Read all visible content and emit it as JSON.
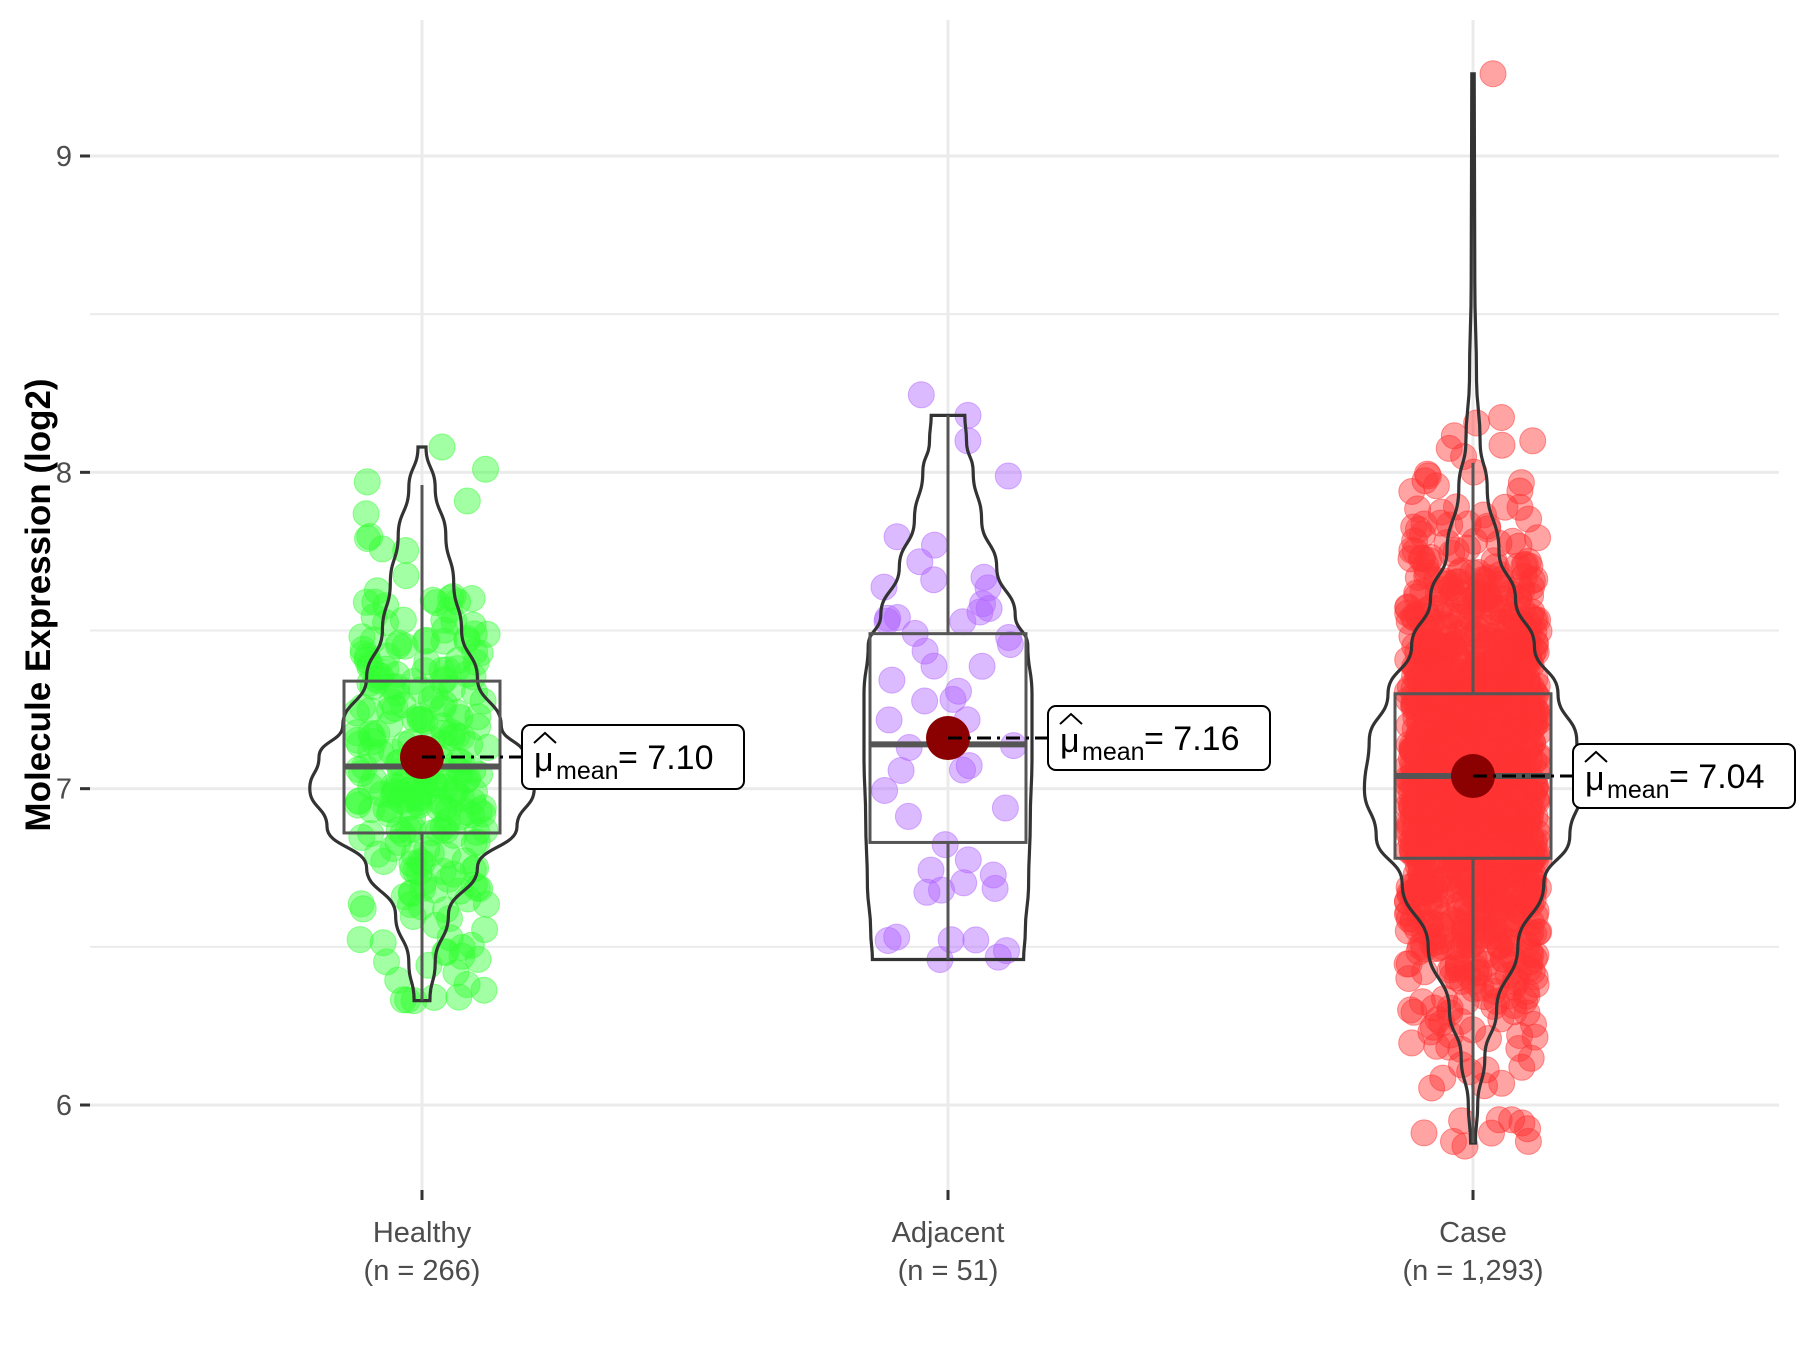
{
  "chart_data": {
    "type": "violin",
    "title": "",
    "xlabel": "",
    "ylabel": "Molecule Expression (log2)",
    "ylim": [
      5.7,
      9.43
    ],
    "y_ticks": [
      6,
      7,
      8,
      9
    ],
    "y_tick_labels": [
      "6",
      "7",
      "8",
      "9"
    ],
    "grid": true,
    "categories": [
      "Healthy",
      "Adjacent",
      "Case"
    ],
    "category_counts": [
      "(n = 266)",
      "(n = 51)",
      "(n = 1,293)"
    ],
    "mean_label_symbol": "μ",
    "mean_label_sub": "mean",
    "series": [
      {
        "name": "Healthy",
        "n": 266,
        "color": "#33ff33",
        "mean": 7.1,
        "mean_label": "= 7.10",
        "median": 7.07,
        "q1": 6.86,
        "q3": 7.34,
        "whisker_low": 6.33,
        "whisker_high": 7.96,
        "min": 6.33,
        "max": 8.08,
        "violin_profile": [
          [
            6.33,
            0.06
          ],
          [
            6.45,
            0.1
          ],
          [
            6.6,
            0.2
          ],
          [
            6.75,
            0.42
          ],
          [
            6.88,
            0.72
          ],
          [
            7.0,
            0.85
          ],
          [
            7.1,
            0.78
          ],
          [
            7.2,
            0.6
          ],
          [
            7.35,
            0.42
          ],
          [
            7.5,
            0.3
          ],
          [
            7.65,
            0.24
          ],
          [
            7.8,
            0.18
          ],
          [
            7.95,
            0.1
          ],
          [
            8.08,
            0.03
          ]
        ]
      },
      {
        "name": "Adjacent",
        "n": 51,
        "color": "#b266ff",
        "mean": 7.16,
        "mean_label": "= 7.16",
        "median": 7.14,
        "q1": 6.83,
        "q3": 7.49,
        "whisker_low": 6.46,
        "whisker_high": 8.18,
        "min": 6.46,
        "max": 8.18,
        "violin_profile": [
          [
            6.46,
            0.9
          ],
          [
            6.55,
            0.92
          ],
          [
            6.7,
            0.96
          ],
          [
            6.9,
            0.98
          ],
          [
            7.1,
            1.0
          ],
          [
            7.3,
            1.0
          ],
          [
            7.45,
            0.95
          ],
          [
            7.55,
            0.8
          ],
          [
            7.7,
            0.58
          ],
          [
            7.85,
            0.4
          ],
          [
            8.0,
            0.3
          ],
          [
            8.1,
            0.22
          ],
          [
            8.18,
            0.2
          ]
        ]
      },
      {
        "name": "Case",
        "n": 1293,
        "color": "#ff3333",
        "mean": 7.04,
        "mean_label": "= 7.04",
        "median": 7.04,
        "q1": 6.78,
        "q3": 7.3,
        "whisker_low": 5.88,
        "whisker_high": 8.03,
        "min": 5.87,
        "max": 9.26,
        "violin_profile": [
          [
            5.88,
            0.02
          ],
          [
            6.0,
            0.04
          ],
          [
            6.15,
            0.1
          ],
          [
            6.3,
            0.2
          ],
          [
            6.5,
            0.38
          ],
          [
            6.7,
            0.6
          ],
          [
            6.85,
            0.82
          ],
          [
            7.0,
            0.92
          ],
          [
            7.15,
            0.88
          ],
          [
            7.3,
            0.72
          ],
          [
            7.45,
            0.52
          ],
          [
            7.6,
            0.36
          ],
          [
            7.75,
            0.22
          ],
          [
            7.95,
            0.12
          ],
          [
            8.1,
            0.06
          ],
          [
            8.3,
            0.03
          ],
          [
            8.6,
            0.015
          ],
          [
            9.26,
            0.01
          ]
        ]
      }
    ]
  }
}
